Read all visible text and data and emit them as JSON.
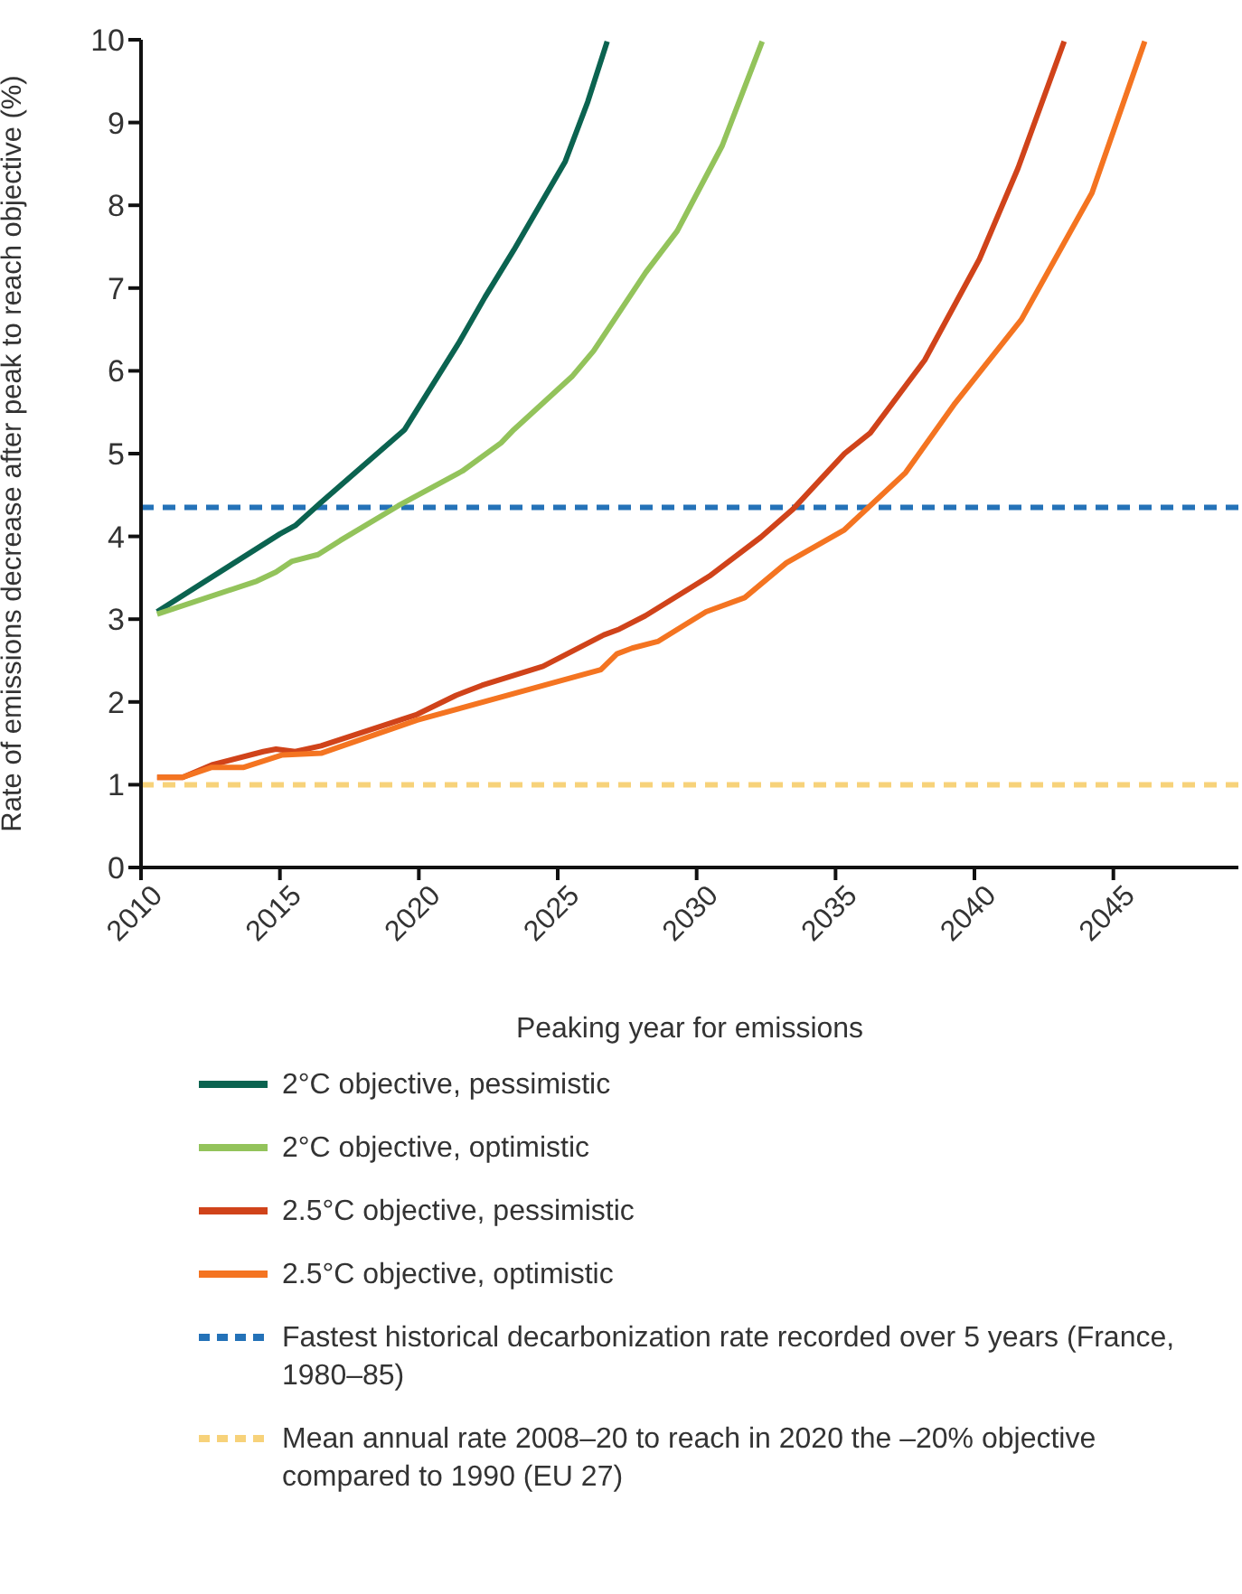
{
  "chart_data": {
    "type": "line",
    "xlabel": "Peaking year for emissions",
    "ylabel": "Rate of emissions decrease after peak to reach objective (%)",
    "xlim": [
      2010,
      2049.5
    ],
    "xticks": [
      2010,
      2015,
      2020,
      2025,
      2030,
      2035,
      2040,
      2045
    ],
    "ylim": [
      0,
      10
    ],
    "yticks": [
      0,
      1,
      2,
      3,
      4,
      5,
      6,
      7,
      8,
      9,
      10
    ],
    "grid": false,
    "legend": "bottom",
    "marker": "none",
    "line_style": "solid",
    "series": [
      {
        "name": "2°C objective, pessimistic",
        "color": "#0b6350",
        "x": [
          2010.58,
          2015.0,
          2015.55,
          2016.48,
          2019.49,
          2021.46,
          2022.38,
          2023.42,
          2025.27,
          2026.08,
          2026.78
        ],
        "values": [
          3.09,
          4.03,
          4.13,
          4.41,
          5.29,
          6.35,
          6.89,
          7.46,
          8.53,
          9.25,
          9.98
        ]
      },
      {
        "name": "2°C objective, optimistic",
        "color": "#93c35b",
        "x": [
          2010.58,
          2014.17,
          2014.86,
          2015.44,
          2016.37,
          2017.17,
          2019.26,
          2021.57,
          2022.96,
          2023.42,
          2025.51,
          2026.29,
          2028.17,
          2029.3,
          2030.92,
          2032.36
        ],
        "values": [
          3.06,
          3.46,
          3.57,
          3.7,
          3.78,
          3.95,
          4.37,
          4.79,
          5.13,
          5.29,
          5.93,
          6.24,
          7.19,
          7.69,
          8.72,
          9.98
        ]
      },
      {
        "name": "2.5°C objective, pessimistic",
        "color": "#d0431a",
        "x": [
          2010.58,
          2011.5,
          2012.55,
          2014.4,
          2014.86,
          2015.55,
          2016.48,
          2019.94,
          2021.34,
          2022.27,
          2024.47,
          2026.66,
          2027.22,
          2028.15,
          2030.46,
          2032.31,
          2033.47,
          2034.63,
          2035.32,
          2036.25,
          2038.21,
          2040.18,
          2041.57,
          2043.23
        ],
        "values": [
          1.09,
          1.09,
          1.24,
          1.4,
          1.43,
          1.4,
          1.47,
          1.85,
          2.08,
          2.2,
          2.43,
          2.81,
          2.88,
          3.04,
          3.52,
          3.99,
          4.33,
          4.75,
          5.0,
          5.25,
          6.13,
          7.35,
          8.45,
          9.98
        ]
      },
      {
        "name": "2.5°C objective, optimistic",
        "color": "#f47421",
        "x": [
          2010.58,
          2011.5,
          2012.55,
          2013.7,
          2015.09,
          2016.48,
          2019.94,
          2026.55,
          2027.13,
          2027.68,
          2028.6,
          2030.34,
          2031.73,
          2033.23,
          2035.32,
          2037.52,
          2039.26,
          2041.69,
          2044.23,
          2046.13
        ],
        "values": [
          1.09,
          1.09,
          1.21,
          1.21,
          1.36,
          1.38,
          1.78,
          2.39,
          2.58,
          2.65,
          2.73,
          3.09,
          3.26,
          3.68,
          4.08,
          4.77,
          5.59,
          6.62,
          8.15,
          9.98
        ]
      }
    ],
    "ref_lines": [
      {
        "axis": "y",
        "value": 4.35,
        "label": "Fastest historical decarbonization rate recorded over 5 years (France, 1980–85)",
        "color": "#2472b8",
        "line_style": "dashed"
      },
      {
        "axis": "y",
        "value": 1,
        "label": "Mean annual rate 2008–20 to reach in 2020 the –20% objective compared to 1990 (EU 27)",
        "color": "#f7d27a",
        "line_style": "dashed"
      }
    ]
  }
}
